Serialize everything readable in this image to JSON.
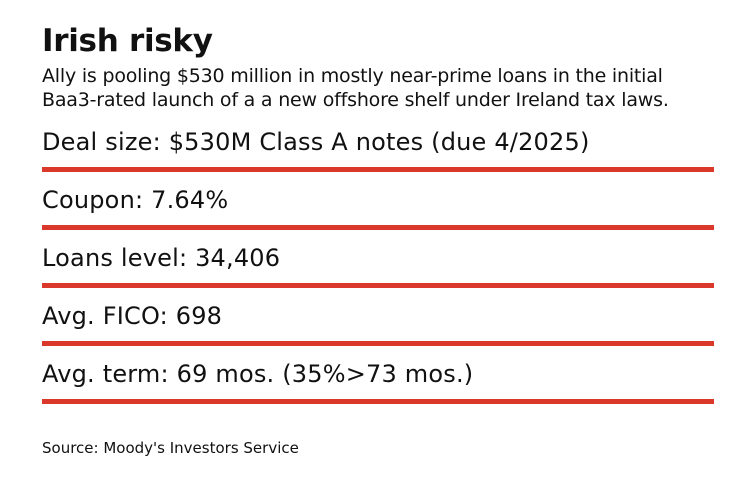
{
  "header": {
    "title": "Irish risky",
    "subtitle": "Ally is pooling $530 million in mostly near-prime loans in the initial Baa3-rated launch of a a new offshore shelf under Ireland tax laws."
  },
  "facts": [
    {
      "text": "Deal size: $530M Class A notes (due 4/2025)"
    },
    {
      "text": "Coupon: 7.64%"
    },
    {
      "text": "Loans level: 34,406"
    },
    {
      "text": "Avg. FICO: 698"
    },
    {
      "text": "Avg. term: 69 mos. (35%>73 mos.)"
    }
  ],
  "footer": {
    "source": "Source: Moody's Investors Service"
  },
  "colors": {
    "accent": "#d9382b",
    "text": "#111111",
    "background": "#ffffff"
  }
}
